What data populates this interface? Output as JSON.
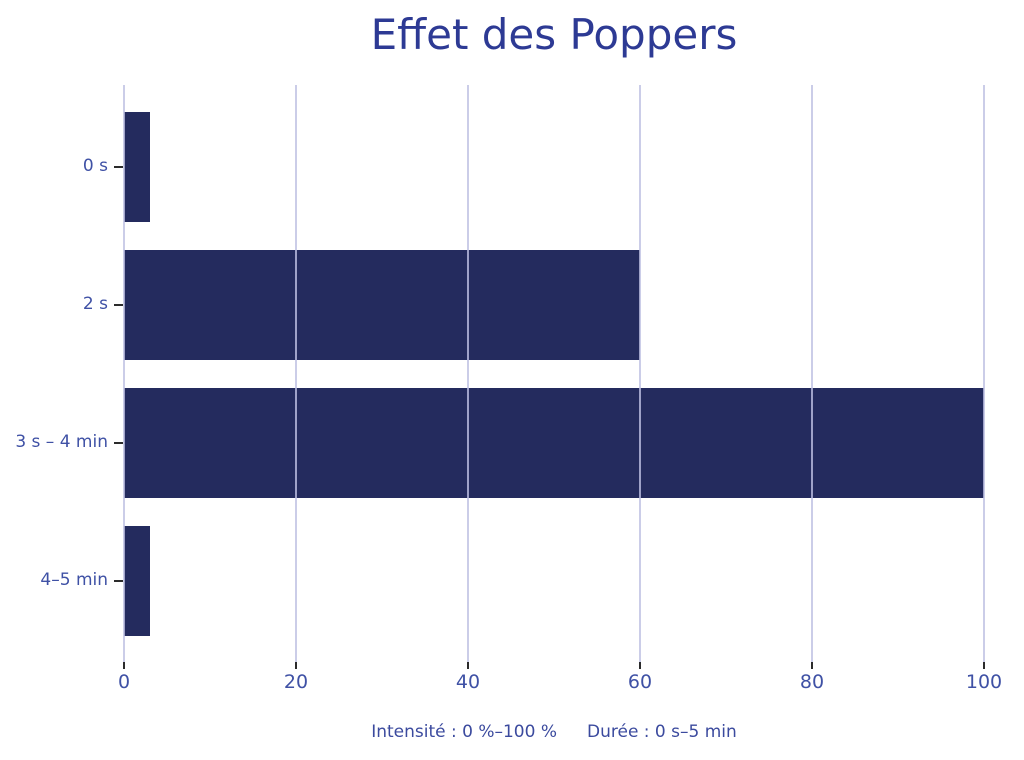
{
  "chart_data": {
    "type": "bar",
    "orientation": "horizontal",
    "title": "Effet des Poppers",
    "categories": [
      "0 s",
      "2 s",
      "3 s – 4 min",
      "4–5 min"
    ],
    "values": [
      3,
      60,
      100,
      3
    ],
    "xlabel": "",
    "ylabel": "",
    "xlim": [
      0,
      100
    ],
    "xticks": [
      0,
      20,
      40,
      60,
      80,
      100
    ],
    "grid": true,
    "legend": false,
    "caption": {
      "intensity": "Intensité : 0 %–100 %",
      "duration": "Durée : 0 s–5 min"
    },
    "colors": {
      "bar": "#242b5e",
      "title": "#2d3a94",
      "tick_labels": "#3f51a5",
      "caption": "#3b4a9e",
      "gridline": "rgba(190,193,226,0.8)",
      "tick_marks": "#2b2b2b"
    }
  }
}
